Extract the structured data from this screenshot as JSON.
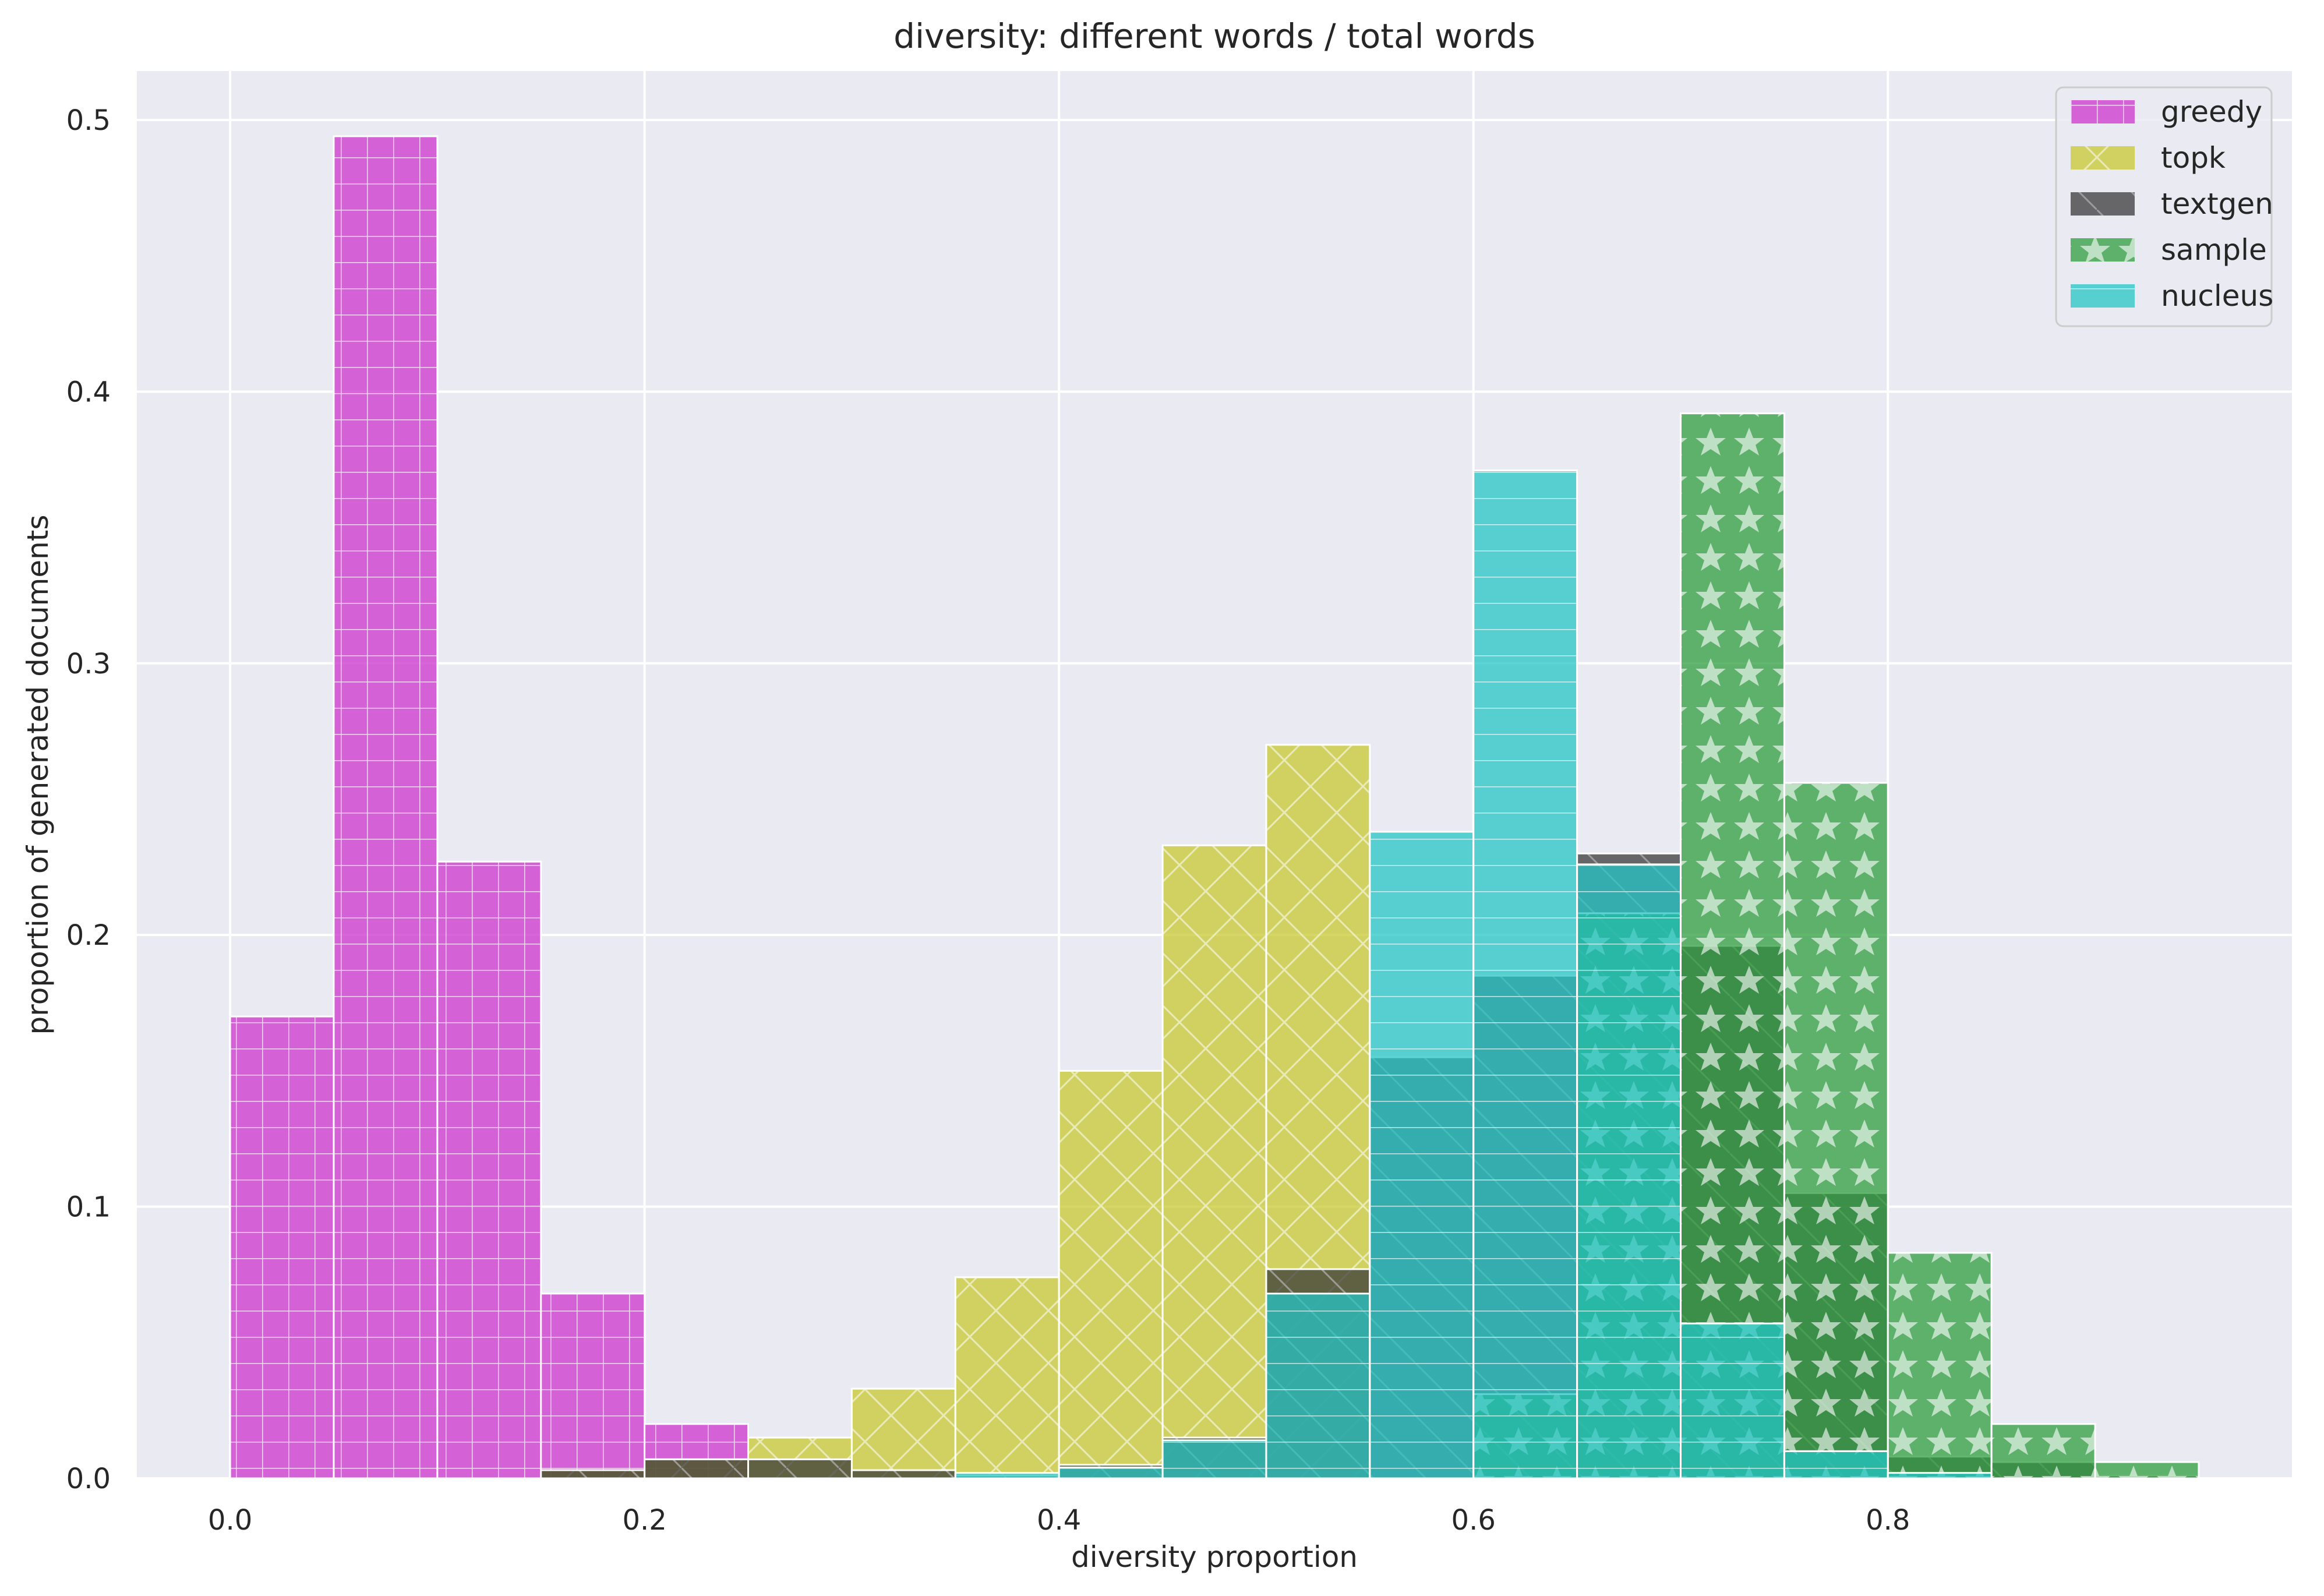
{
  "chart_data": {
    "type": "bar",
    "title": "diversity: different words / total words",
    "xlabel": "diversity proportion",
    "ylabel": "proportion of generated documents",
    "xlim": [
      -0.045,
      0.995
    ],
    "ylim": [
      0,
      0.518
    ],
    "xticks": [
      0.0,
      0.2,
      0.4,
      0.6,
      0.8
    ],
    "xtick_labels": [
      "0.0",
      "0.2",
      "0.4",
      "0.6",
      "0.8"
    ],
    "yticks": [
      0.0,
      0.1,
      0.2,
      0.3,
      0.4,
      0.5
    ],
    "ytick_labels": [
      "0.0",
      "0.1",
      "0.2",
      "0.3",
      "0.4",
      "0.5"
    ],
    "grid": true,
    "legend_position": "top-right",
    "bin_edges": [
      0.0,
      0.05,
      0.1,
      0.15,
      0.2,
      0.25,
      0.3,
      0.35,
      0.4,
      0.45,
      0.5,
      0.55,
      0.6,
      0.65,
      0.7,
      0.75,
      0.8,
      0.85,
      0.9,
      0.95
    ],
    "series": [
      {
        "name": "greedy",
        "color": "#cc33cc",
        "pattern": "grid",
        "values": [
          0.17,
          0.494,
          0.227,
          0.068,
          0.02,
          0.0,
          0.0,
          0.0,
          0.0,
          0.0,
          0.0,
          0.0,
          0.0,
          0.0,
          0.0,
          0.0,
          0.0,
          0.0,
          0.0
        ]
      },
      {
        "name": "topk",
        "color": "#c8c832",
        "pattern": "crosshatch",
        "values": [
          0.0,
          0.0,
          0.0,
          0.003,
          0.007,
          0.015,
          0.033,
          0.074,
          0.15,
          0.233,
          0.27,
          0.0,
          0.0,
          0.0,
          0.0,
          0.0,
          0.0,
          0.0,
          0.0
        ]
      },
      {
        "name": "textgen",
        "color": "#3a3a3a",
        "pattern": "diagonal",
        "values": [
          0.0,
          0.0,
          0.0,
          0.003,
          0.007,
          0.007,
          0.003,
          0.001,
          0.005,
          0.015,
          0.077,
          0.155,
          0.185,
          0.23,
          0.196,
          0.105,
          0.008,
          0.006,
          0.001
        ]
      },
      {
        "name": "sample",
        "color": "#2e9e3e",
        "pattern": "stars",
        "values": [
          0.0,
          0.0,
          0.0,
          0.0,
          0.0,
          0.0,
          0.0,
          0.0,
          0.0,
          0.0,
          0.0,
          0.0,
          0.031,
          0.208,
          0.392,
          0.256,
          0.083,
          0.02,
          0.006
        ]
      },
      {
        "name": "nucleus",
        "color": "#26c6c6",
        "pattern": "horizontal",
        "values": [
          0.0,
          0.0,
          0.0,
          0.0,
          0.0,
          0.0,
          0.0,
          0.002,
          0.004,
          0.014,
          0.068,
          0.238,
          0.371,
          0.226,
          0.057,
          0.01,
          0.002,
          0.0,
          0.0
        ]
      }
    ]
  }
}
